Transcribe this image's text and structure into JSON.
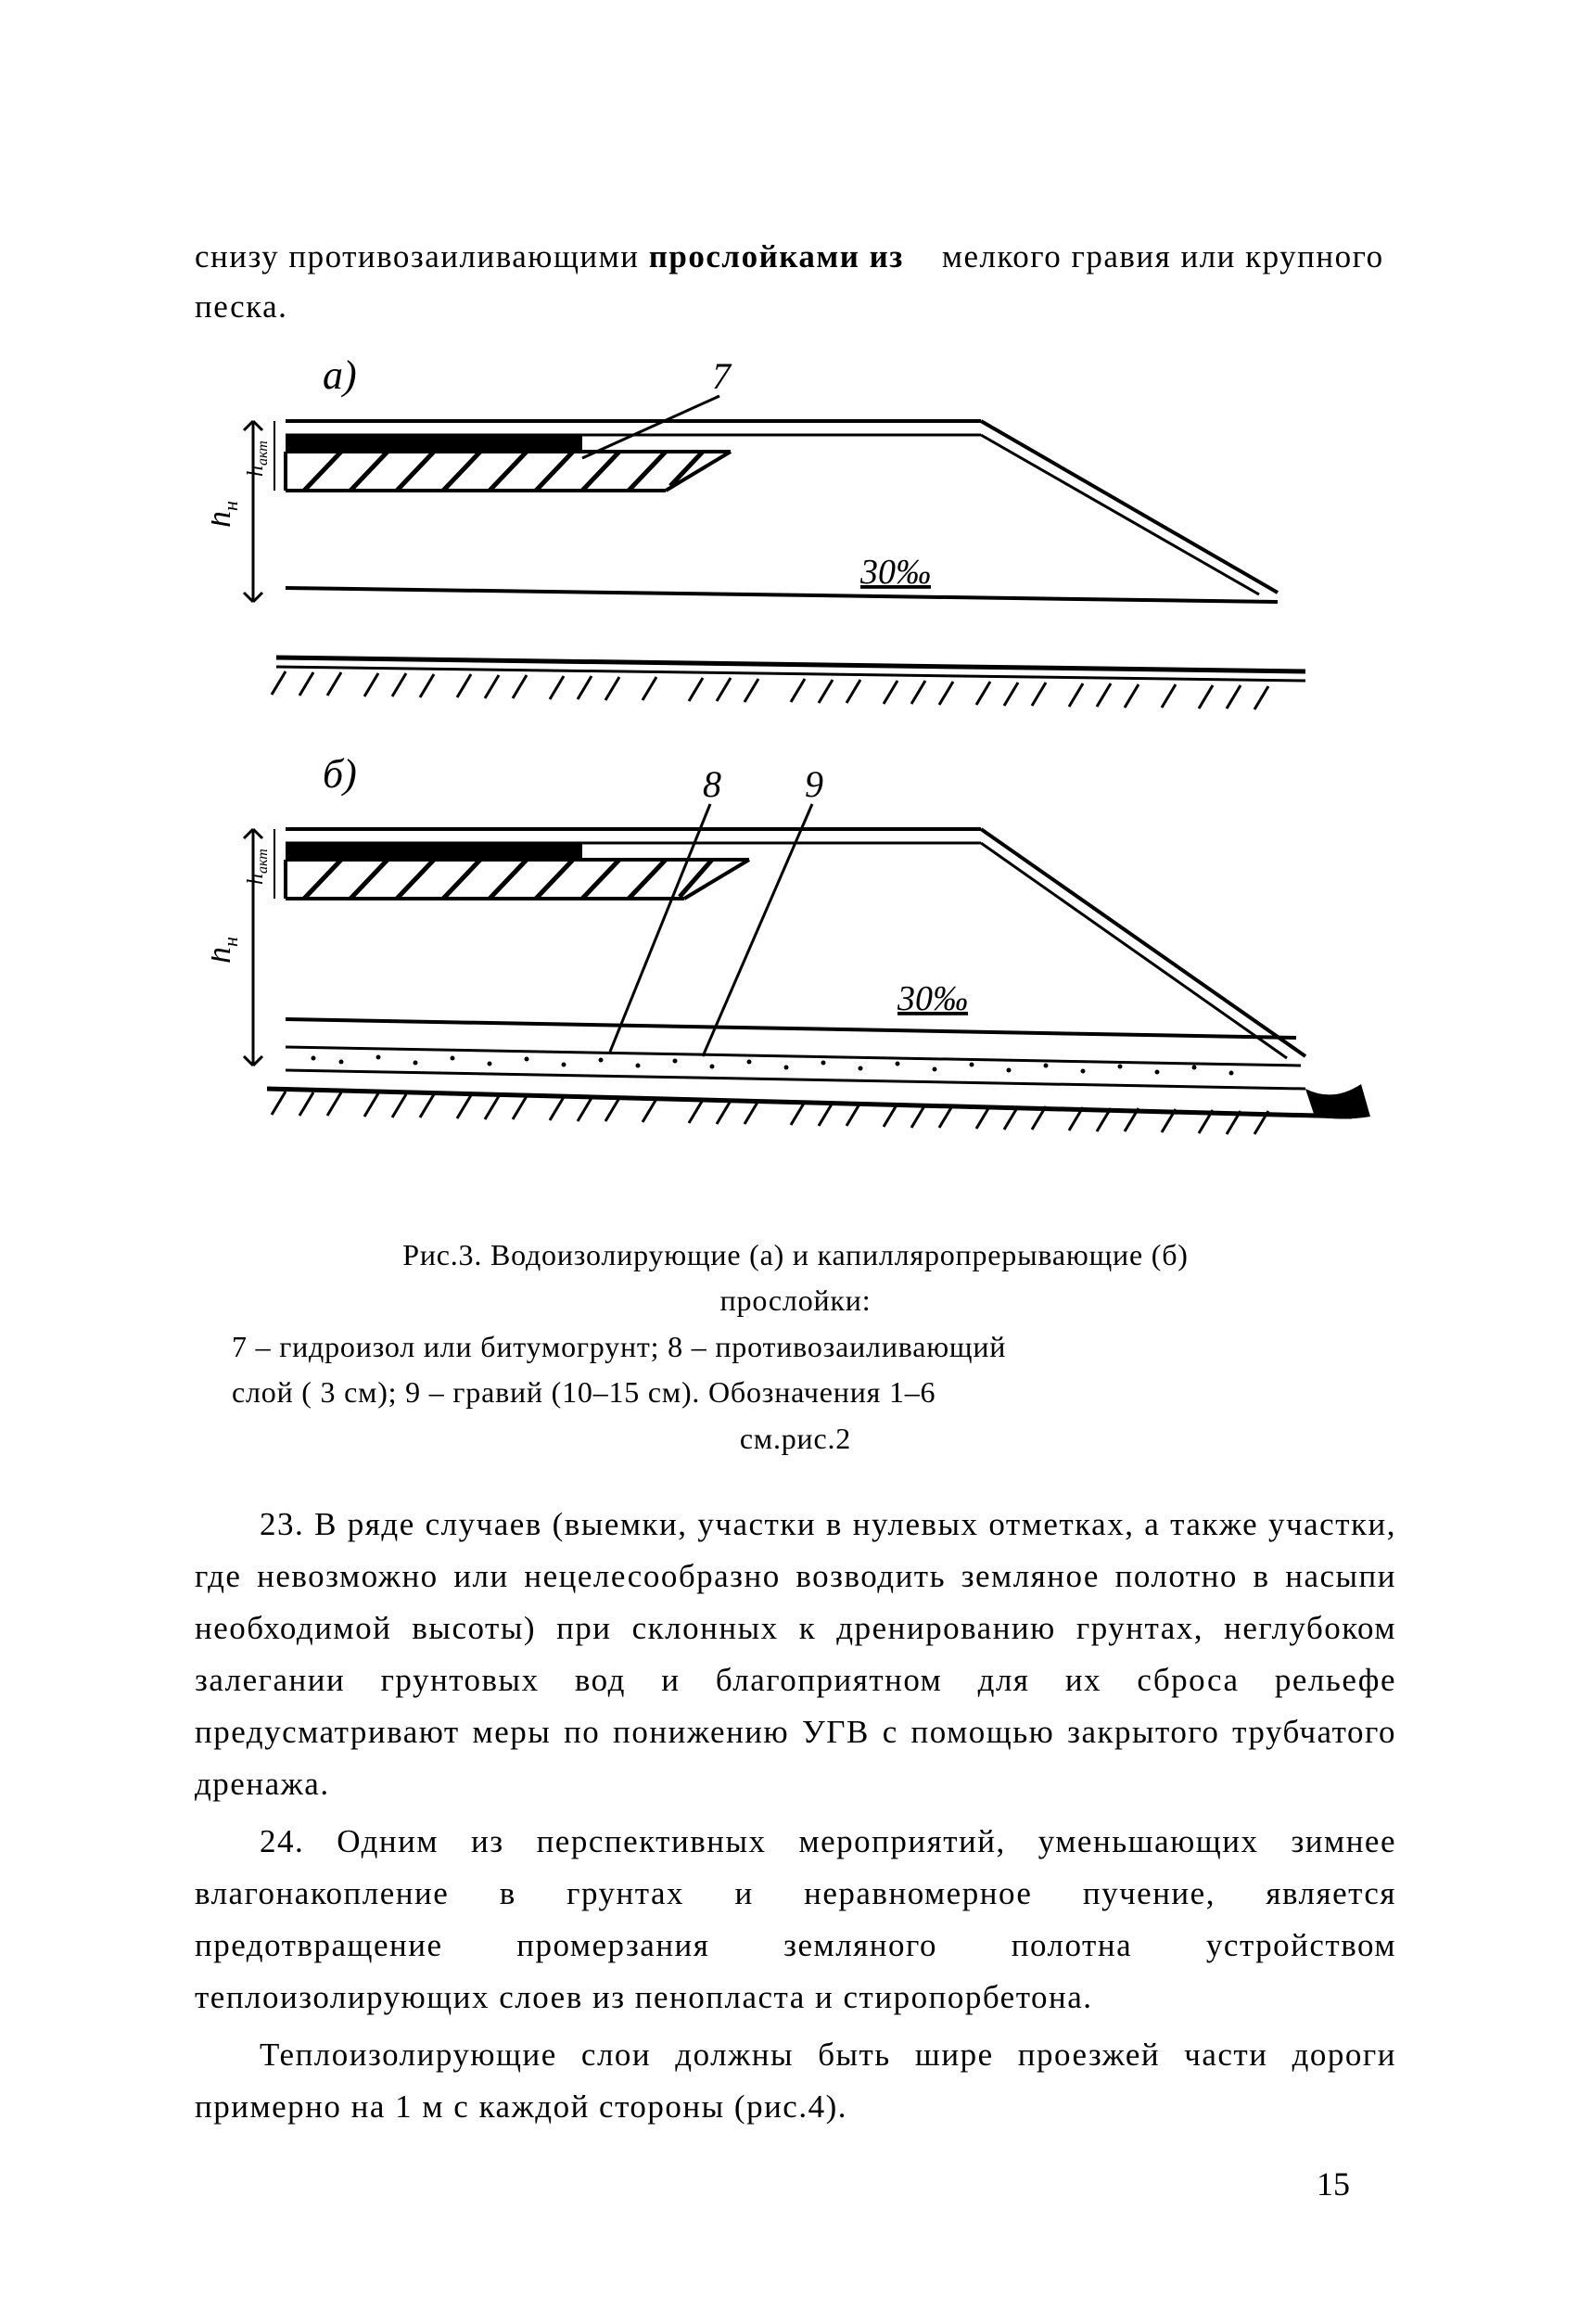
{
  "intro": {
    "text_html": "снизу противозаиливающими <span class=\"bold\">прослойками из</span>&nbsp;&nbsp;&nbsp;&nbsp;мелкого гравия или крупного песка."
  },
  "diagram": {
    "view_a_label": "а)",
    "view_b_label": "б)",
    "leader_7": "7",
    "leader_8": "8",
    "leader_9": "9",
    "slope_text": "30‰",
    "h_label_a": "h",
    "h_sub_a": "н",
    "h_sub_a2": "акт",
    "h_label_b": "h",
    "h_sub_b": "н",
    "h_sub_b2": "акт"
  },
  "caption": {
    "line1": "Рис.3. Водоизолирующие (а) и капилляропрерывающие    (б)",
    "line2": "прослойки:",
    "line3": "7 – гидроизол или битумогрунт; 8 – противозаиливающий",
    "line4": "слой ( 3 см); 9 – гравий (10–15 см). Обозначения    1–6",
    "line5": "см.рис.2"
  },
  "para23": "23. В ряде случаев (выемки, участки в нулевых отметках, а также участки, где невозможно или нецелесообразно возводить земляное полотно в насыпи необходимой высоты) при склонных к дренированию грунтах, неглубоком залегании грунтовых вод и  благоприятном для их сброса рельефе предусматривают меры по понижению УГВ с помощью закрытого трубчатого дренажа.",
  "para24": "24. Одним из перспективных мероприятий, уменьшающих зимнее влагонакопление в грунтах и неравномерное пучение, является предотвращение промерзания земляного полотна устройством теплоизолирующих  слоев из  пенопласта и стиропорбетона.",
  "para25": "Теплоизолирующие слои должны быть шире проезжей части дороги примерно на 1 м с каждой стороны (рис.4).",
  "page_number": "15",
  "colors": {
    "stroke": "#000000",
    "background": "#ffffff"
  }
}
